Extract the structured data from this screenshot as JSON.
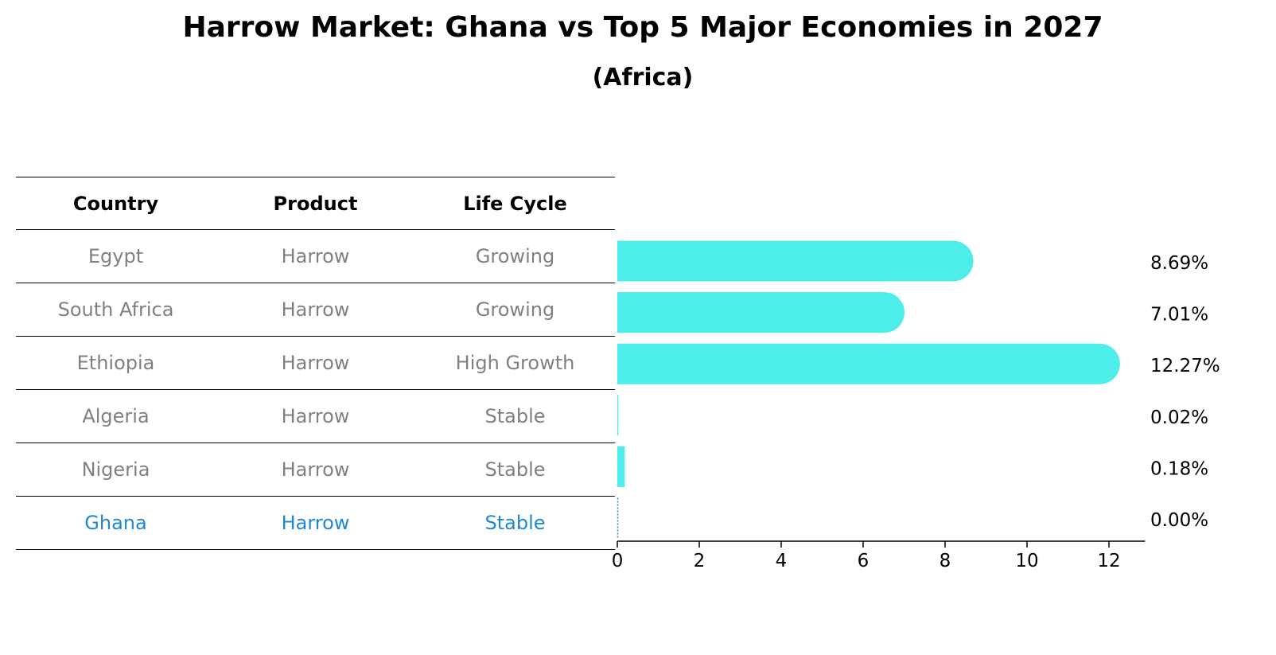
{
  "title": "Harrow Market: Ghana vs Top 5 Major Economies in 2027",
  "subtitle": "(Africa)",
  "table": {
    "headers": [
      "Country",
      "Product",
      "Life Cycle"
    ],
    "rows": [
      [
        "Egypt",
        "Harrow",
        "Growing"
      ],
      [
        "South Africa",
        "Harrow",
        "Growing"
      ],
      [
        "Ethiopia",
        "Harrow",
        "High Growth"
      ],
      [
        "Algeria",
        "Harrow",
        "Stable"
      ],
      [
        "Nigeria",
        "Harrow",
        "Stable"
      ],
      [
        "Ghana",
        "Harrow",
        "Stable"
      ]
    ]
  },
  "colors": {
    "bar": "#4DEDEA",
    "highlight": "#1F87D4",
    "muted_text": "#808080"
  },
  "chart_data": {
    "type": "bar",
    "orientation": "horizontal",
    "categories": [
      "Egypt",
      "South Africa",
      "Ethiopia",
      "Algeria",
      "Nigeria",
      "Ghana"
    ],
    "values": [
      8.69,
      7.01,
      12.27,
      0.02,
      0.18,
      0.0
    ],
    "value_labels": [
      "8.69%",
      "7.01%",
      "12.27%",
      "0.02%",
      "0.18%",
      "0.00%"
    ],
    "xticks": [
      0,
      2,
      4,
      6,
      8,
      10,
      12
    ],
    "xlim": [
      0,
      12.88
    ],
    "grid": false
  }
}
